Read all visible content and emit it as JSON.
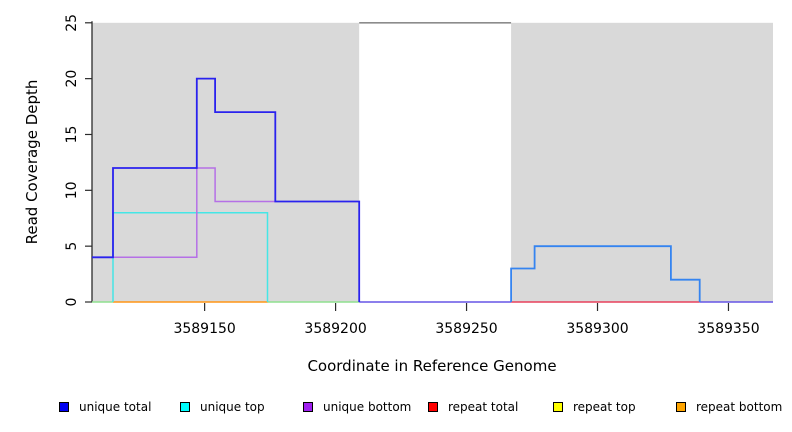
{
  "chart_data": {
    "type": "line",
    "subtype": "step-coverage",
    "xlabel": "Coordinate in Reference Genome",
    "ylabel": "Read Coverage Depth",
    "xlim": [
      3589107,
      3589367
    ],
    "ylim": [
      0,
      25
    ],
    "x_ticks": [
      3589150,
      3589200,
      3589250,
      3589300,
      3589350
    ],
    "y_ticks": [
      0,
      5,
      10,
      15,
      20,
      25
    ],
    "grid": false,
    "legend_position": "bottom",
    "background_regions": [
      {
        "name": "left-shaded-region",
        "x": [
          3589107,
          3589209
        ],
        "color": "#d9d9d9"
      },
      {
        "name": "right-shaded-region",
        "x": [
          3589267,
          3589367
        ],
        "color": "#d9d9d9"
      }
    ],
    "gap_marker": {
      "x": [
        3589209,
        3589267
      ],
      "y": 25,
      "color": "#8c8c8c"
    },
    "series": [
      {
        "name": "unique total",
        "color": "#0000f0",
        "steps": [
          [
            3589107,
            4
          ],
          [
            3589115,
            12
          ],
          [
            3589147,
            20
          ],
          [
            3589154,
            17
          ],
          [
            3589177,
            9
          ],
          [
            3589209,
            0
          ],
          [
            3589267,
            3
          ],
          [
            3589276,
            5
          ],
          [
            3589328,
            2
          ],
          [
            3589339,
            0
          ]
        ]
      },
      {
        "name": "unique top",
        "color": "#00ffff",
        "steps": [
          [
            3589107,
            0
          ],
          [
            3589115,
            8
          ],
          [
            3589174,
            0
          ],
          [
            3589267,
            3
          ],
          [
            3589276,
            5
          ],
          [
            3589328,
            2
          ],
          [
            3589339,
            0
          ]
        ]
      },
      {
        "name": "unique bottom",
        "color": "#a020f0",
        "steps": [
          [
            3589107,
            4
          ],
          [
            3589147,
            12
          ],
          [
            3589154,
            9
          ],
          [
            3589209,
            0
          ]
        ]
      },
      {
        "name": "repeat total",
        "color": "#ff0000",
        "steps": [
          [
            3589107,
            0
          ]
        ]
      },
      {
        "name": "repeat top",
        "color": "#ffff00",
        "steps": [
          [
            3589107,
            0
          ]
        ]
      },
      {
        "name": "repeat bottom",
        "color": "#ffa500",
        "steps": [
          [
            3589107,
            0
          ]
        ]
      }
    ],
    "render_segments": [
      {
        "name": "zero-line-green-left",
        "color": "#8fe08f",
        "width": 1.4,
        "points": [
          [
            3589107,
            0
          ],
          [
            3589115,
            0
          ]
        ]
      },
      {
        "name": "zero-line-orange",
        "color": "#ff9616",
        "width": 1.6,
        "points": [
          [
            3589115,
            0
          ],
          [
            3589174,
            0
          ]
        ]
      },
      {
        "name": "zero-line-green-mid",
        "color": "#8fe08f",
        "width": 1.4,
        "points": [
          [
            3589174,
            0
          ],
          [
            3589209,
            0
          ]
        ]
      },
      {
        "name": "zero-line-violet-gap",
        "color": "#6655e6",
        "width": 1.6,
        "points": [
          [
            3589209,
            0
          ],
          [
            3589267,
            0
          ]
        ]
      },
      {
        "name": "zero-line-red",
        "color": "#e8415c",
        "width": 1.5,
        "points": [
          [
            3589267,
            0
          ],
          [
            3589339,
            0
          ]
        ]
      },
      {
        "name": "zero-line-violet-right",
        "color": "#6655e6",
        "width": 1.6,
        "points": [
          [
            3589339,
            0
          ],
          [
            3589367,
            0
          ]
        ]
      },
      {
        "name": "unique-top-line",
        "color": "#45e6e6",
        "width": 1.5,
        "points": [
          [
            3589115,
            0
          ],
          [
            3589115,
            8
          ],
          [
            3589174,
            8
          ],
          [
            3589174,
            0
          ]
        ]
      },
      {
        "name": "unique-bottom-line",
        "color": "#b570e6",
        "width": 1.5,
        "points": [
          [
            3589115,
            4
          ],
          [
            3589147,
            4
          ],
          [
            3589147,
            12
          ],
          [
            3589154,
            12
          ],
          [
            3589154,
            9
          ],
          [
            3589177,
            9
          ]
        ]
      },
      {
        "name": "unique-total-line-left",
        "color": "#2a22ee",
        "width": 1.8,
        "points": [
          [
            3589107,
            4
          ],
          [
            3589115,
            4
          ],
          [
            3589115,
            12
          ],
          [
            3589147,
            12
          ],
          [
            3589147,
            20
          ],
          [
            3589154,
            20
          ],
          [
            3589154,
            17
          ],
          [
            3589177,
            17
          ],
          [
            3589177,
            9
          ],
          [
            3589209,
            9
          ],
          [
            3589209,
            0
          ]
        ]
      },
      {
        "name": "unique-total-line-right",
        "color": "#3584f0",
        "width": 1.8,
        "points": [
          [
            3589267,
            0
          ],
          [
            3589267,
            3
          ],
          [
            3589276,
            3
          ],
          [
            3589276,
            5
          ],
          [
            3589328,
            5
          ],
          [
            3589328,
            2
          ],
          [
            3589339,
            2
          ],
          [
            3589339,
            0
          ]
        ]
      }
    ],
    "legend": [
      {
        "label": "unique total",
        "color": "#0000f0"
      },
      {
        "label": "unique top",
        "color": "#00ffff"
      },
      {
        "label": "unique bottom",
        "color": "#a020f0"
      },
      {
        "label": "repeat total",
        "color": "#ff0000"
      },
      {
        "label": "repeat top",
        "color": "#ffff00"
      },
      {
        "label": "repeat bottom",
        "color": "#ffa500"
      }
    ],
    "axis_color": "#2b2b2b",
    "tick_label_color": "#000000"
  }
}
